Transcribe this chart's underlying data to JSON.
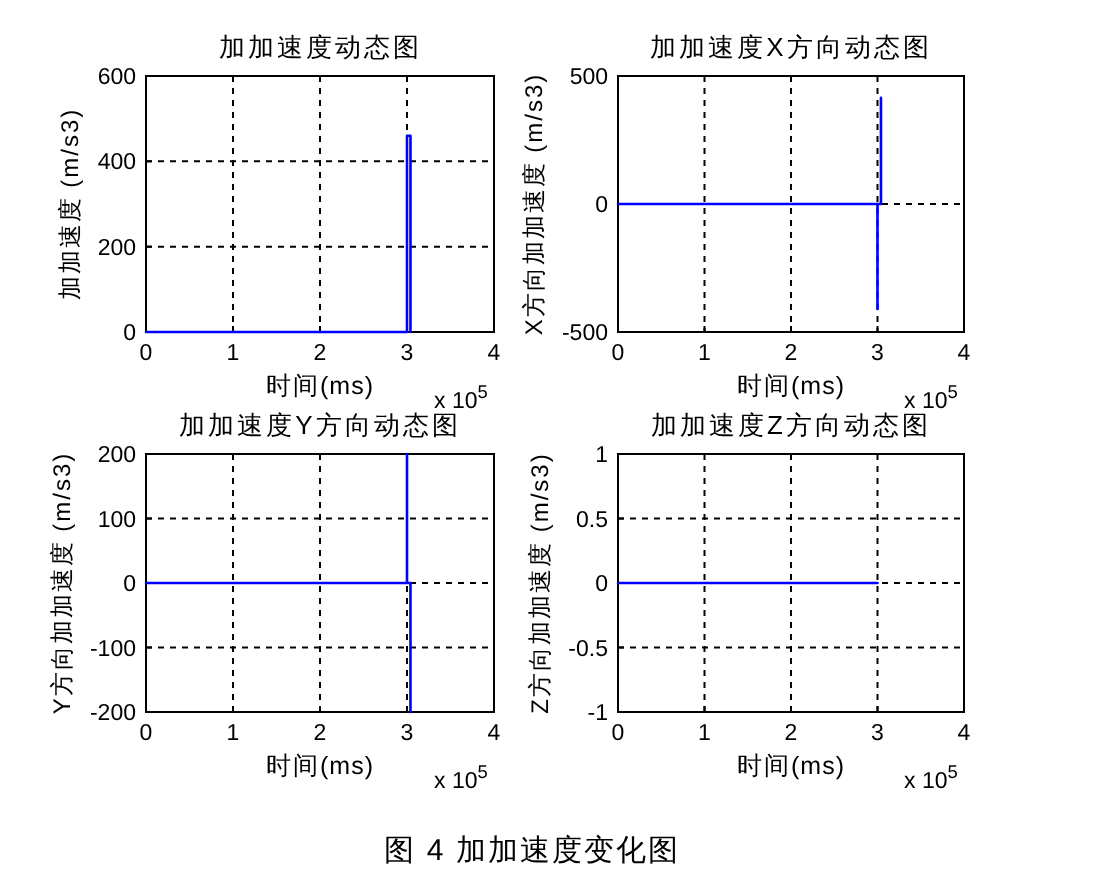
{
  "chart_data": [
    {
      "type": "line",
      "title": "加加速度动态图",
      "xlabel": "时间(ms)",
      "ylabel": "加加速度 (m/s3)",
      "x": [
        0,
        3,
        3,
        3.04,
        3.04
      ],
      "values": [
        0,
        0,
        460,
        460,
        0
      ],
      "color": "#0000ff",
      "xlim": [
        0,
        4
      ],
      "xticks": [
        0,
        1,
        2,
        3,
        4
      ],
      "ylim": [
        0,
        600
      ],
      "yticks": [
        0,
        200,
        400,
        600
      ],
      "grid": true,
      "annotations": [
        "x 10$^{5}$"
      ]
    },
    {
      "type": "line",
      "title": "加加速度X方向动态图",
      "xlabel": "时间(ms)",
      "ylabel": "X方向加加速度 (m/s3)",
      "x": [
        0,
        3,
        3,
        3,
        3.04,
        3.04
      ],
      "values": [
        0,
        0,
        -410,
        0,
        0,
        415
      ],
      "color": "#0000ff",
      "xlim": [
        0,
        4
      ],
      "xticks": [
        0,
        1,
        2,
        3,
        4
      ],
      "ylim": [
        -500,
        500
      ],
      "yticks": [
        -500,
        0,
        500
      ],
      "grid": true,
      "annotations": [
        "x 10$^{5}$"
      ]
    },
    {
      "type": "line",
      "title": "加加速度Y方向动态图",
      "xlabel": "时间(ms)",
      "ylabel": "Y方向加加速度 (m/s3)",
      "x": [
        0,
        3,
        3,
        3,
        3.04,
        3.04
      ],
      "values": [
        0,
        0,
        200,
        0,
        0,
        -200
      ],
      "color": "#0000ff",
      "xlim": [
        0,
        4
      ],
      "xticks": [
        0,
        1,
        2,
        3,
        4
      ],
      "ylim": [
        -200,
        200
      ],
      "yticks": [
        -200,
        -100,
        0,
        100,
        200
      ],
      "grid": true,
      "annotations": [
        "x 10$^{5}$"
      ]
    },
    {
      "type": "line",
      "title": "加加速度Z方向动态图",
      "xlabel": "时间(ms)",
      "ylabel": "Z方向加加速度 (m/s3)",
      "x": [
        0,
        3
      ],
      "values": [
        0,
        0
      ],
      "color": "#0000ff",
      "xlim": [
        0,
        4
      ],
      "xticks": [
        0,
        1,
        2,
        3,
        4
      ],
      "ylim": [
        -1,
        1
      ],
      "yticks": [
        -1,
        -0.5,
        0,
        0.5,
        1
      ],
      "grid": true,
      "annotations": [
        "x 10$^{5}$",
        "图 4 加加速度变化图"
      ]
    }
  ]
}
